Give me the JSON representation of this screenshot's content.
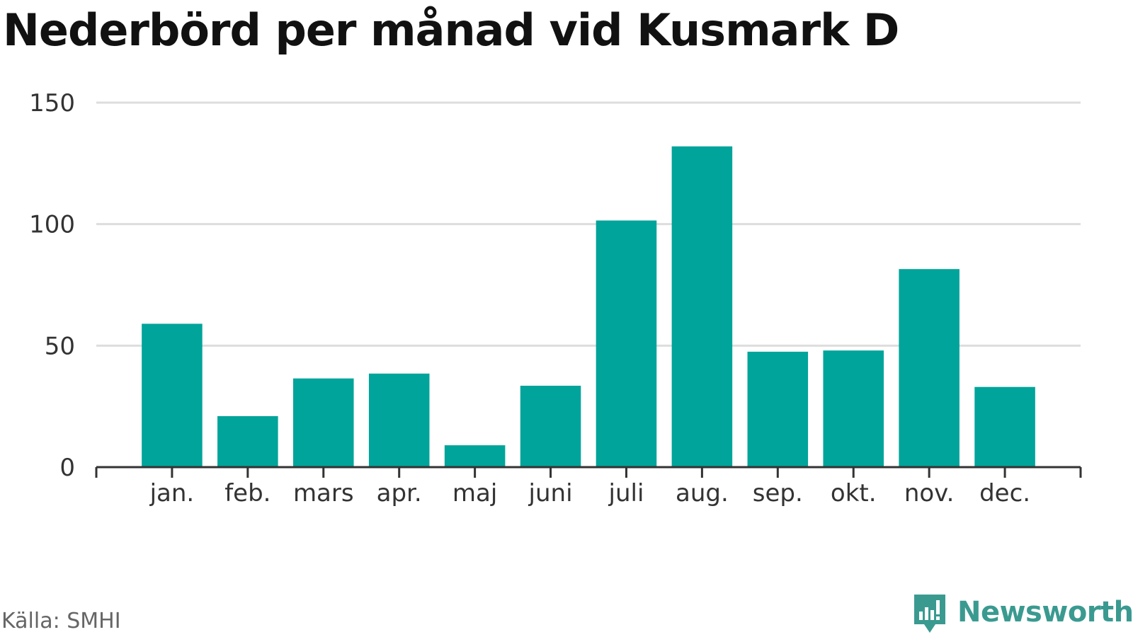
{
  "title": "Nederbörd per månad vid Kusmark D",
  "source": "Källa: SMHI",
  "brand": {
    "name": "Newsworthy",
    "logo_icon": "newsworthy-bar-chart-icon",
    "color": "#3a9a90"
  },
  "colors": {
    "bar": "#00a49a",
    "grid": "#dddddd",
    "axis": "#333333",
    "tick_text": "#333333"
  },
  "chart_data": {
    "type": "bar",
    "categories": [
      "jan.",
      "feb.",
      "mars",
      "apr.",
      "maj",
      "juni",
      "juli",
      "aug.",
      "sep.",
      "okt.",
      "nov.",
      "dec."
    ],
    "values": [
      59,
      21,
      36.5,
      38.5,
      9,
      33.5,
      101.5,
      132,
      47.5,
      48,
      81.5,
      33
    ],
    "title": "Nederbörd per månad vid Kusmark D",
    "xlabel": "",
    "ylabel": "",
    "ylim": [
      0,
      150
    ],
    "yticks": [
      0,
      50,
      100,
      150
    ],
    "ytick_labels": [
      "0",
      "50",
      "100",
      "150"
    ],
    "grid": true,
    "legend": "none"
  }
}
